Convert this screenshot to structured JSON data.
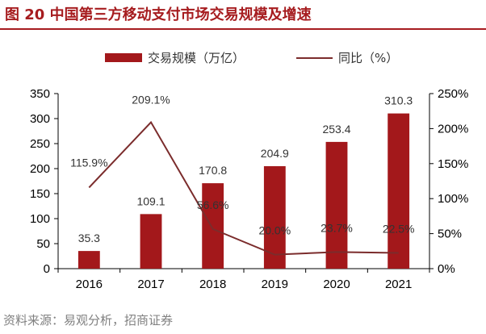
{
  "title": "图 20 中国第三方移动支付市场交易规模及增速",
  "source": "资料来源：易观分析，招商证券",
  "colors": {
    "bar": "#a3181b",
    "line": "#7b2c2c",
    "title": "#a61c1f"
  },
  "chart_data": {
    "type": "bar",
    "categories": [
      "2016",
      "2017",
      "2018",
      "2019",
      "2020",
      "2021"
    ],
    "series": [
      {
        "name": "交易规模（万亿）",
        "type": "bar",
        "axis": "left",
        "values": [
          35.3,
          109.1,
          170.8,
          204.9,
          253.4,
          310.3
        ],
        "labels": [
          "35.3",
          "109.1",
          "170.8",
          "204.9",
          "253.4",
          "310.3"
        ]
      },
      {
        "name": "同比（%）",
        "type": "line",
        "axis": "right",
        "values": [
          115.9,
          209.1,
          56.6,
          20.0,
          23.7,
          22.5
        ],
        "labels": [
          "115.9%",
          "209.1%",
          "56.6%",
          "20.0%",
          "23.7%",
          "22.5%"
        ]
      }
    ],
    "ylim": [
      0,
      350
    ],
    "y2lim": [
      0,
      250
    ],
    "yticks": [
      "0",
      "50",
      "100",
      "150",
      "200",
      "250",
      "300",
      "350"
    ],
    "y2ticks": [
      "0%",
      "50%",
      "100%",
      "150%",
      "200%",
      "250%"
    ],
    "legend_position": "top"
  }
}
